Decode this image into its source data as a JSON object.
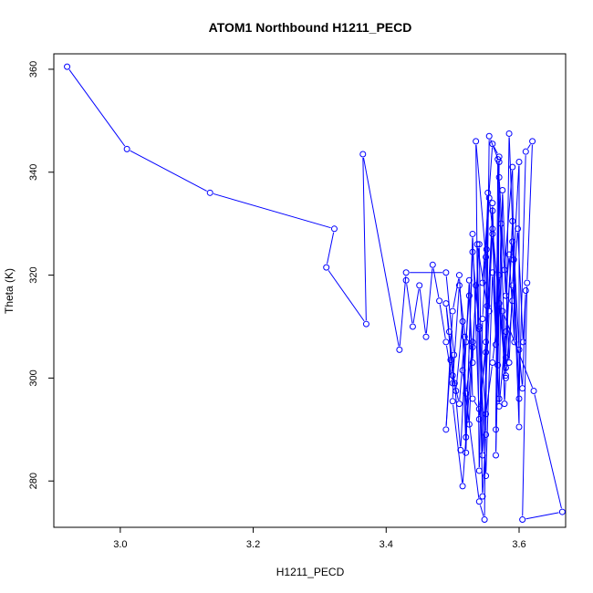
{
  "chart_data": {
    "type": "line",
    "title": "ATOM1 Northbound H1211_PECD",
    "xlabel": "H1211_PECD",
    "ylabel": "Theta (K)",
    "xlim": [
      2.9,
      3.67
    ],
    "ylim": [
      271,
      363
    ],
    "xticks": [
      "3.0",
      "3.2",
      "3.4",
      "3.6"
    ],
    "yticks": [
      "280",
      "300",
      "320",
      "340",
      "360"
    ],
    "grid": false,
    "legend": "none",
    "series_color": "#0000ff",
    "point_style": "open-circle",
    "series": [
      {
        "x": [
          2.92,
          3.01,
          3.135,
          3.322,
          3.31,
          3.37,
          3.365,
          3.42,
          3.43,
          3.49,
          3.502,
          3.5,
          3.515,
          3.53,
          3.525,
          3.515,
          3.54,
          3.548,
          3.551,
          3.545,
          3.56,
          3.57,
          3.565,
          3.568,
          3.58,
          3.585,
          3.592,
          3.6,
          3.61,
          3.62,
          3.612,
          3.605,
          3.665,
          3.622,
          3.575,
          3.578,
          3.58,
          3.56,
          3.555,
          3.545,
          3.54,
          3.535,
          3.55,
          3.553,
          3.55,
          3.545,
          3.537,
          3.552,
          3.555,
          3.57,
          3.565,
          3.573,
          3.578,
          3.59,
          3.593,
          3.585,
          3.58,
          3.57,
          3.568,
          3.56,
          3.55,
          3.54,
          3.53,
          3.525,
          3.512,
          3.503,
          3.495,
          3.49,
          3.5,
          3.51,
          3.518,
          3.52,
          3.53,
          3.54,
          3.55,
          3.56,
          3.57,
          3.575,
          3.585,
          3.59,
          3.6,
          3.6,
          3.59,
          3.58,
          3.57,
          3.56,
          3.55,
          3.54,
          3.53,
          3.52,
          3.515,
          3.505,
          3.497,
          3.49,
          3.5,
          3.51,
          3.52,
          3.53,
          3.54,
          3.545,
          3.555,
          3.56,
          3.565,
          3.57,
          3.58,
          3.59,
          3.598,
          3.606,
          3.61,
          3.605,
          3.6,
          3.59,
          3.58,
          3.57,
          3.56,
          3.55,
          3.54,
          3.535,
          3.53,
          3.525,
          3.52,
          3.51,
          3.5,
          3.49,
          3.48,
          3.47,
          3.46,
          3.45,
          3.44,
          3.43
        ],
        "y": [
          360.5,
          344.5,
          336.0,
          329.0,
          321.5,
          310.5,
          343.5,
          305.5,
          320.5,
          320.5,
          304.5,
          295.5,
          279.0,
          307.0,
          291.0,
          301.5,
          276.0,
          272.5,
          325.0,
          318.5,
          345.5,
          343.0,
          290.0,
          342.5,
          302.0,
          347.5,
          323.0,
          296.0,
          344.0,
          346.0,
          318.5,
          272.5,
          274.0,
          297.5,
          313.0,
          295.0,
          300.0,
          329.0,
          335.0,
          311.5,
          282.0,
          346.0,
          323.5,
          336.0,
          289.0,
          277.0,
          326.0,
          314.0,
          347.0,
          342.0,
          285.0,
          330.0,
          321.0,
          341.0,
          307.0,
          324.0,
          316.0,
          339.0,
          302.5,
          328.0,
          305.0,
          294.0,
          296.0,
          319.0,
          286.0,
          299.0,
          309.0,
          314.5,
          300.5,
          295.0,
          308.0,
          288.5,
          324.5,
          309.5,
          281.0,
          320.5,
          296.0,
          336.5,
          303.0,
          318.0,
          342.0,
          290.5,
          326.5,
          309.0,
          294.5,
          332.5,
          307.0,
          292.0,
          328.0,
          285.5,
          311.0,
          297.5,
          303.5,
          290.0,
          313.0,
          320.0,
          297.0,
          306.0,
          326.0,
          285.0,
          313.0,
          334.0,
          306.5,
          320.0,
          300.5,
          315.0,
          329.0,
          307.0,
          317.0,
          298.0,
          305.5,
          330.5,
          304.0,
          314.5,
          303.0,
          293.0,
          310.0,
          318.0,
          303.0,
          316.0,
          307.0,
          318.0,
          299.0,
          307.0,
          315.0,
          322.0,
          308.0,
          318.0,
          310.0,
          319.0
        ]
      }
    ]
  }
}
